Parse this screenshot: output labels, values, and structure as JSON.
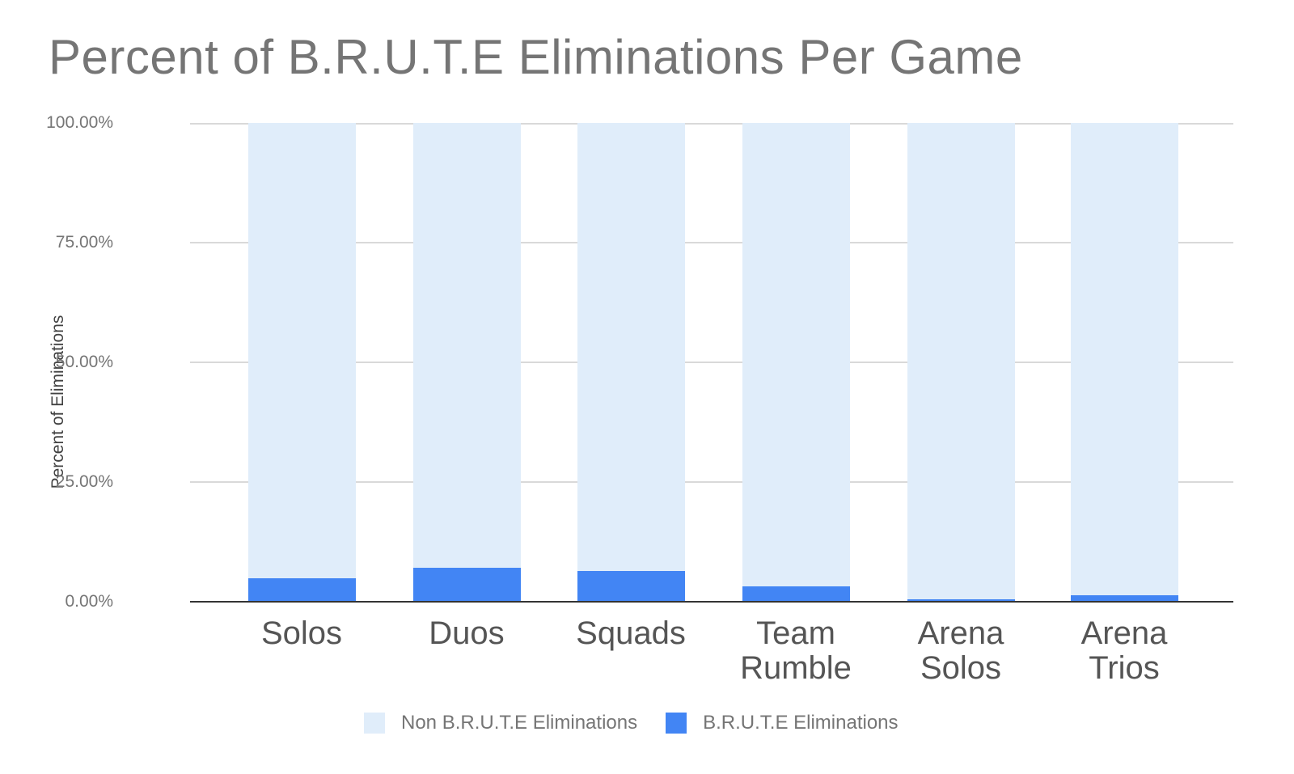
{
  "chart_data": {
    "type": "bar",
    "stacked": true,
    "stack_mode": "percent",
    "title": "Percent of B.R.U.T.E Eliminations Per Game",
    "xlabel": "",
    "ylabel": "Percent of Eliminations",
    "ylim": [
      0,
      100
    ],
    "yticks": [
      "0.00%",
      "25.00%",
      "50.00%",
      "75.00%",
      "100.00%"
    ],
    "categories": [
      "Solos",
      "Duos",
      "Squads",
      "Team Rumble",
      "Arena Solos",
      "Arena Trios"
    ],
    "series": [
      {
        "name": "Non B.R.U.T.E Eliminations",
        "color": "#e0edfa",
        "values": [
          95.1,
          92.9,
          93.6,
          96.8,
          99.5,
          98.65
        ]
      },
      {
        "name": "B.R.U.T.E Eliminations",
        "color": "#4285f4",
        "values": [
          4.9,
          7.1,
          6.4,
          3.2,
          0.5,
          1.35
        ]
      }
    ],
    "legend_position": "bottom",
    "grid": true
  },
  "labels": {
    "title": "Percent of B.R.U.T.E Eliminations Per Game",
    "ylabel": "Percent of Eliminations",
    "ticks": [
      "100.00%",
      "75.00%",
      "50.00%",
      "25.00%",
      "0.00%"
    ],
    "x": [
      [
        "Solos",
        ""
      ],
      [
        "Duos",
        ""
      ],
      [
        "Squads",
        ""
      ],
      [
        "Team",
        "Rumble"
      ],
      [
        "Arena",
        "Solos"
      ],
      [
        "Arena",
        "Trios"
      ]
    ],
    "legend": [
      "Non B.R.U.T.E Eliminations",
      "B.R.U.T.E Eliminations"
    ]
  }
}
